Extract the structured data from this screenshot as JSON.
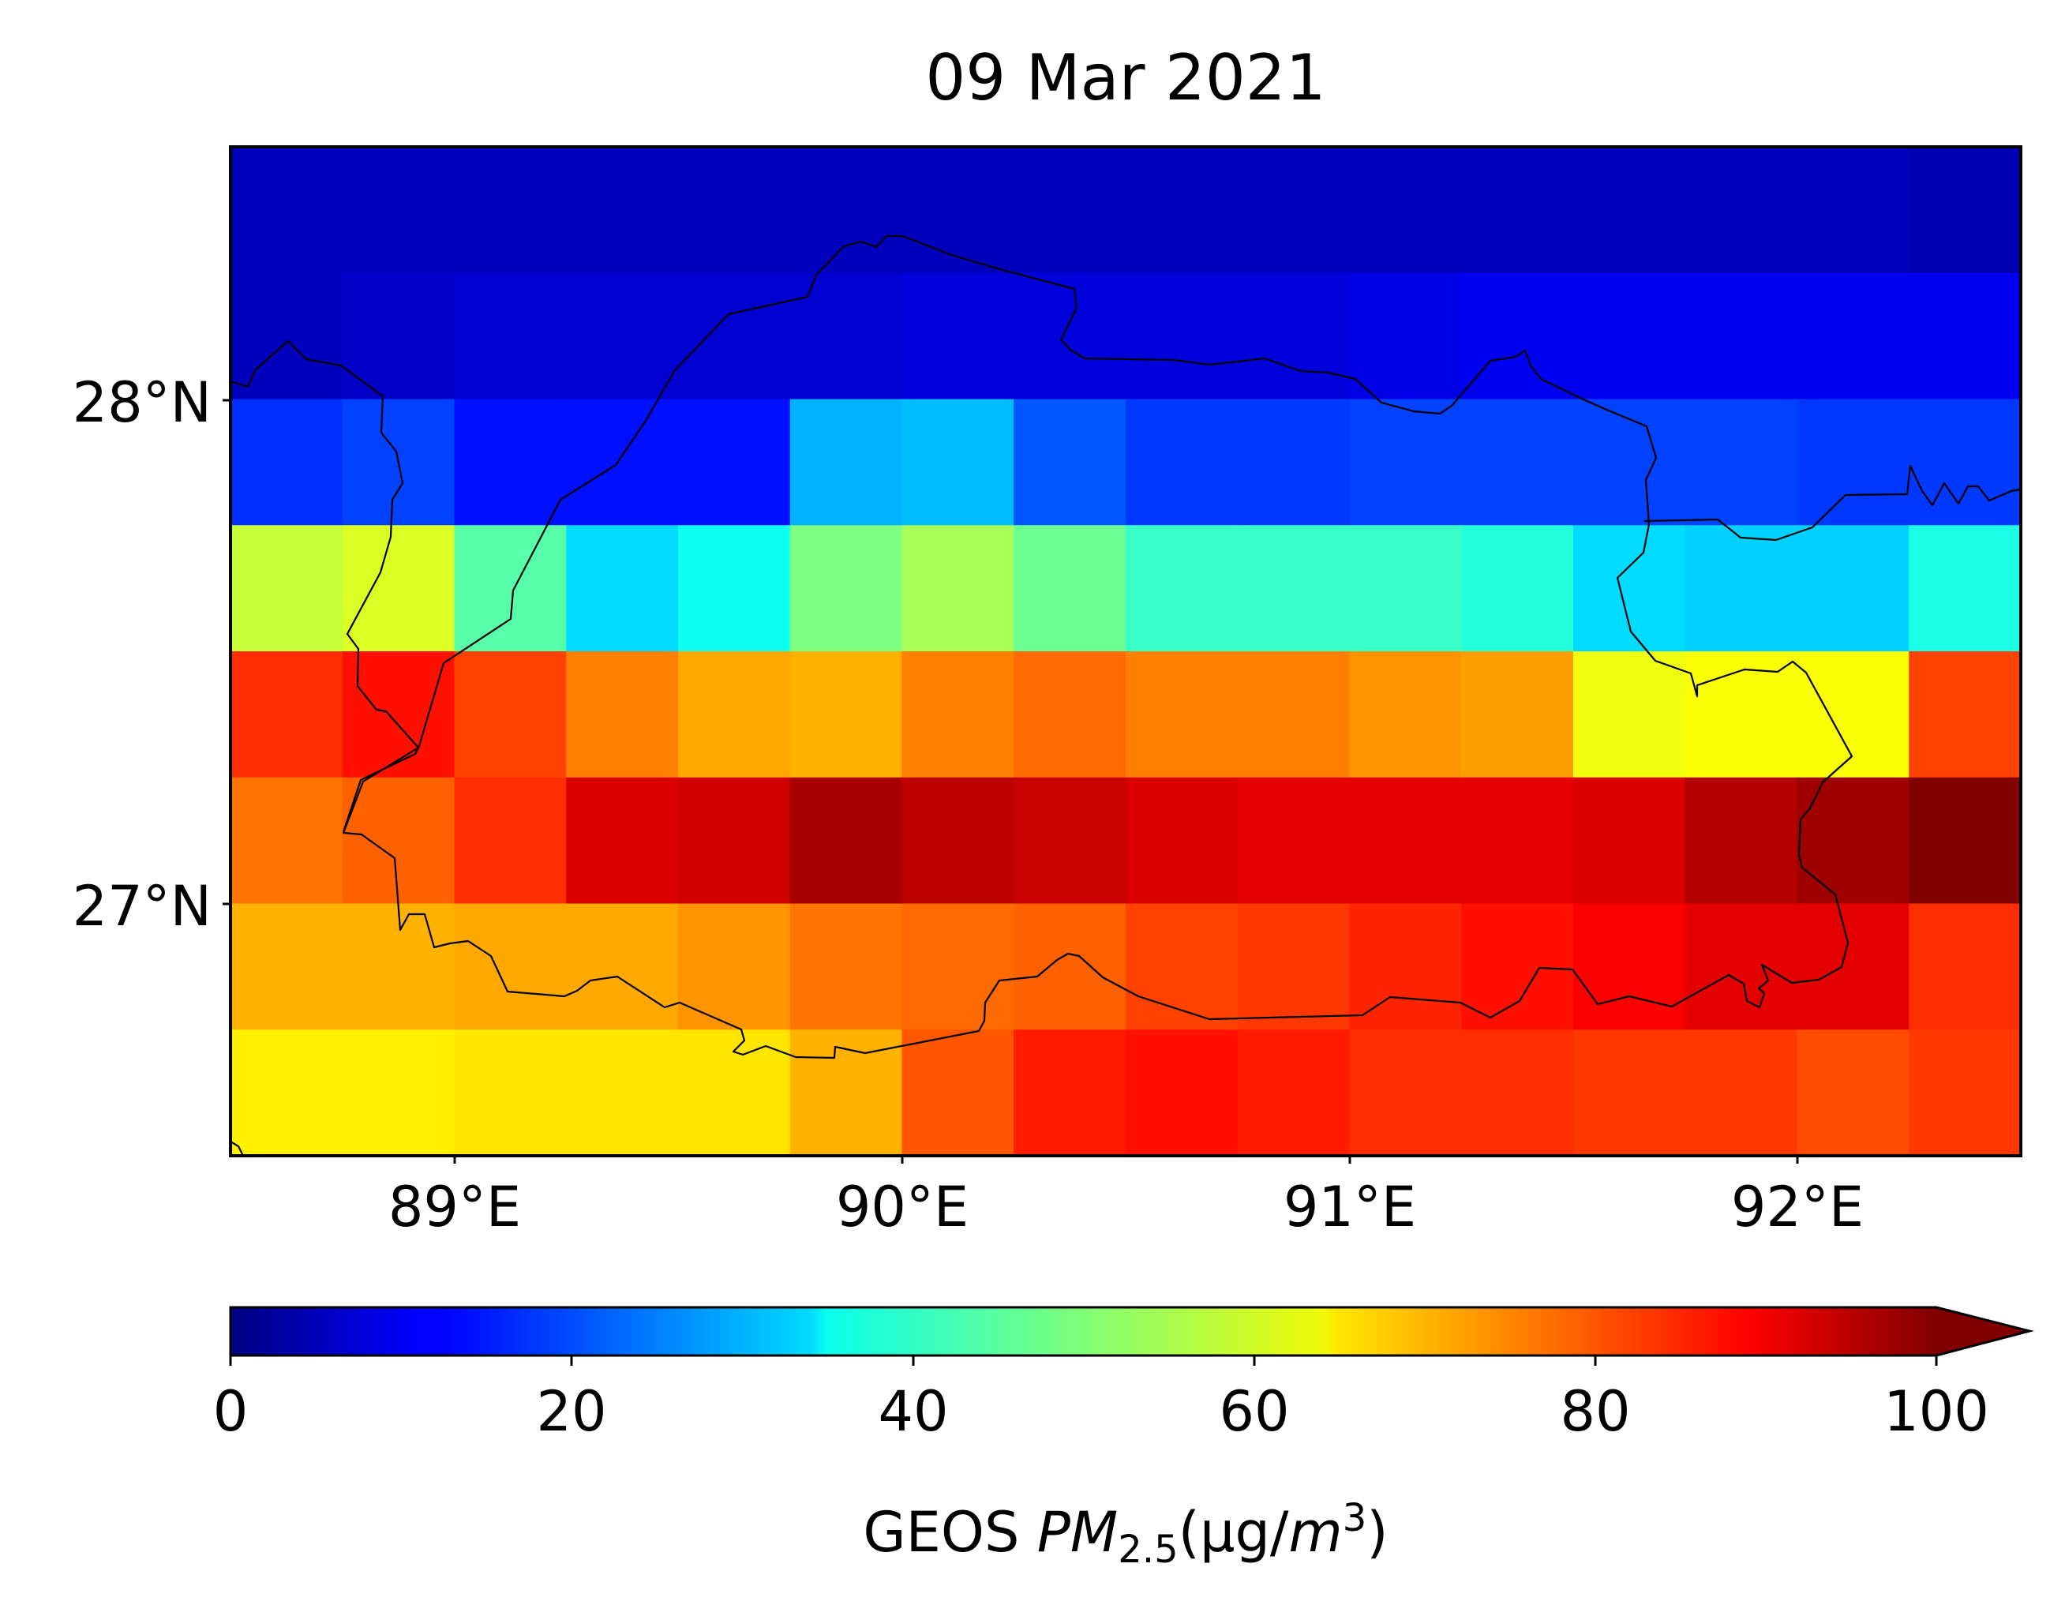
{
  "title": "09 Mar 2021",
  "map": {
    "lon_range": [
      88.5,
      92.5
    ],
    "lat_range": [
      26.5,
      28.5
    ],
    "cell_size_deg": 0.25,
    "colormap": "jet",
    "vmin": 0,
    "vmax": 100,
    "grid_values_north_to_south": [
      [
        6,
        6,
        6,
        6,
        6,
        6,
        6,
        6,
        6,
        6,
        6,
        6,
        6,
        6,
        6,
        5
      ],
      [
        6,
        7,
        8,
        8,
        8,
        8,
        9,
        9,
        9,
        9,
        10,
        11,
        11,
        11,
        11,
        11
      ],
      [
        17,
        19,
        14,
        14,
        14,
        30,
        31,
        21,
        18,
        18,
        19,
        19,
        19,
        19,
        18,
        18
      ],
      [
        57,
        59,
        46,
        34,
        39,
        50,
        54,
        48,
        43,
        43,
        43,
        41,
        34,
        33,
        33,
        40
      ],
      [
        83,
        86,
        81,
        75,
        71,
        70,
        75,
        77,
        75,
        75,
        73,
        72,
        61,
        62,
        62,
        81
      ],
      [
        76,
        78,
        83,
        91,
        92,
        96,
        94,
        93,
        91,
        90,
        90,
        90,
        91,
        95,
        97,
        101
      ],
      [
        70,
        70,
        71,
        71,
        73,
        76,
        77,
        78,
        81,
        82,
        84,
        86,
        88,
        90,
        90,
        83
      ],
      [
        64,
        64,
        65,
        65,
        65,
        70,
        79,
        85,
        86,
        85,
        83,
        83,
        82,
        82,
        80,
        82
      ]
    ],
    "x_ticks": [
      "89°E",
      "90°E",
      "91°E",
      "92°E"
    ],
    "y_ticks": [
      "28°N",
      "27°N"
    ]
  },
  "colorbar": {
    "ticks": [
      "0",
      "20",
      "40",
      "60",
      "80",
      "100"
    ],
    "extend": "max",
    "label_prefix": "GEOS ",
    "label_sym": "PM",
    "label_sub": "2.5",
    "label_unit_open": "(μg/",
    "label_unit_var": "m",
    "label_sup": "3",
    "label_close": ")"
  }
}
